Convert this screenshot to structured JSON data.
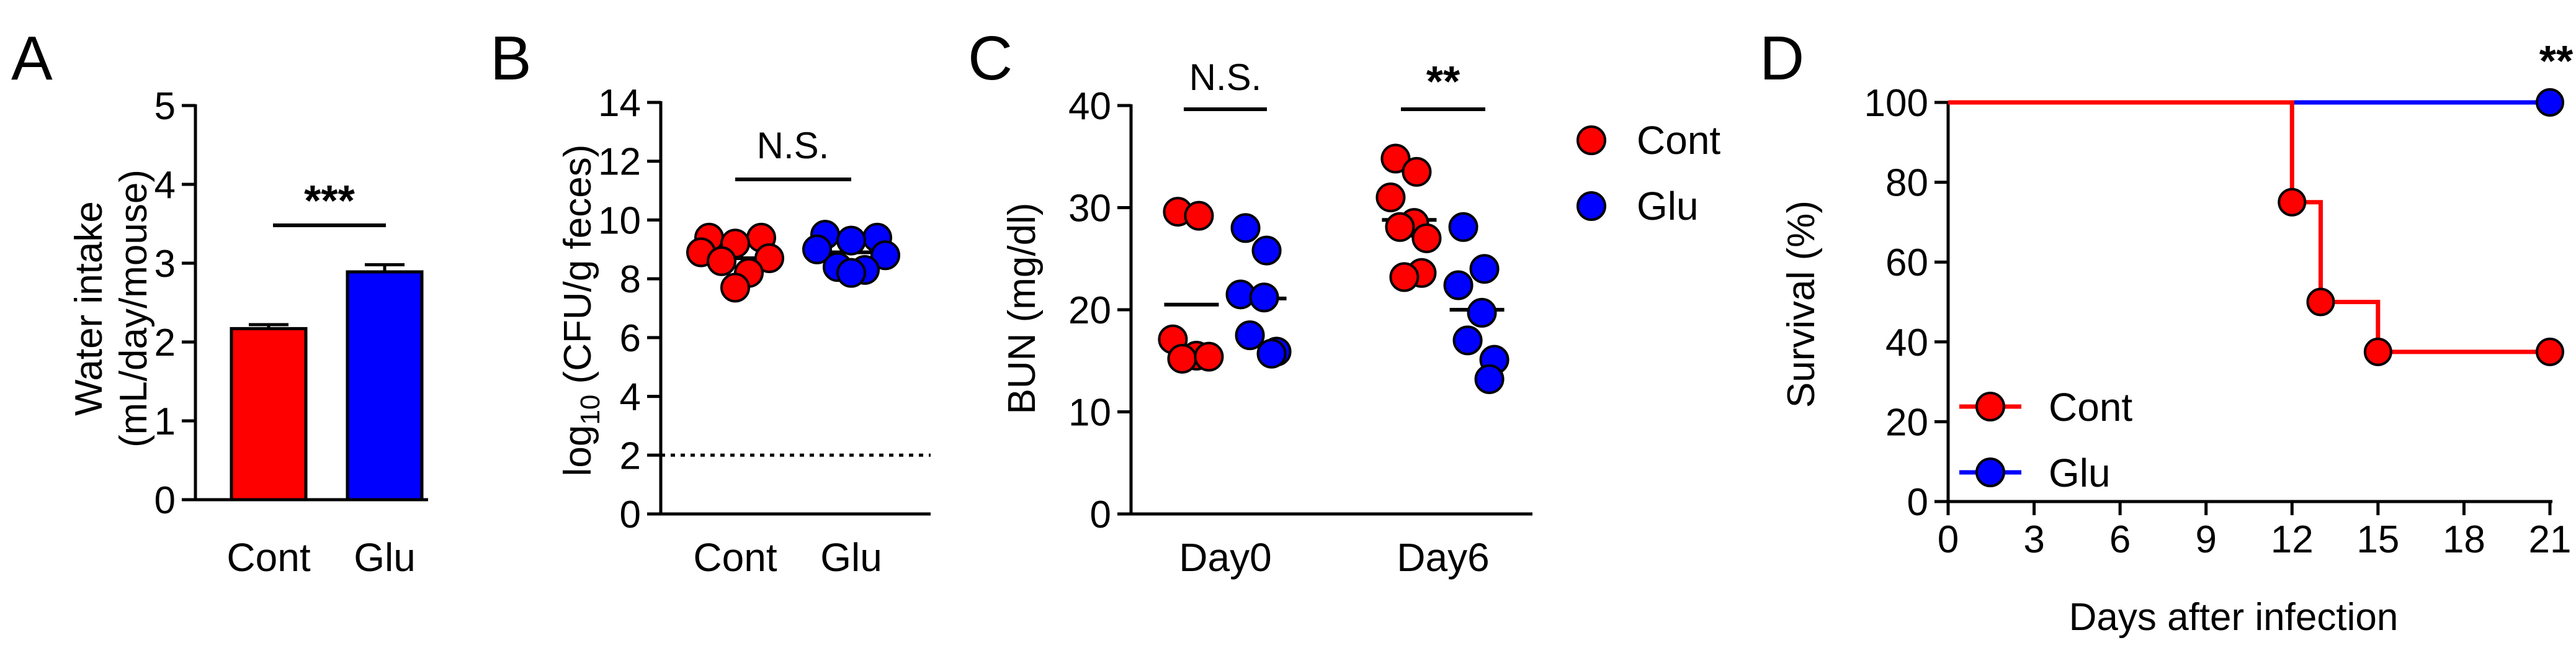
{
  "colors": {
    "cont": "#ff0000",
    "glu": "#0000ff",
    "axis": "#000000"
  },
  "chart_data": [
    {
      "panel": "A",
      "type": "bar",
      "ylabel_line1": "Water intake",
      "ylabel_line2": "(mL/day/mouse)",
      "ylim": [
        0,
        5
      ],
      "yticks": [
        0,
        1,
        2,
        3,
        4,
        5
      ],
      "categories": [
        "Cont",
        "Glu"
      ],
      "values": [
        2.17,
        2.89
      ],
      "errors": [
        0.05,
        0.09
      ],
      "bar_colors": [
        "#ff0000",
        "#0000ff"
      ],
      "significance": [
        {
          "label": "***",
          "between": [
            0,
            1
          ]
        }
      ]
    },
    {
      "panel": "B",
      "type": "scatter",
      "ylabel_base": "log",
      "ylabel_sub": "10",
      "ylabel_rest": " (CFU/g feces)",
      "ylim": [
        0,
        14
      ],
      "yticks": [
        0,
        2,
        4,
        6,
        8,
        10,
        12,
        14
      ],
      "detection_limit": 2,
      "categories": [
        "Cont",
        "Glu"
      ],
      "series": [
        {
          "name": "Cont",
          "color": "#ff0000",
          "values": [
            9.4,
            9.4,
            9.2,
            8.9,
            8.7,
            8.6,
            8.2,
            7.7
          ],
          "mean": 8.7
        },
        {
          "name": "Glu",
          "color": "#0000ff",
          "values": [
            9.5,
            9.4,
            9.3,
            9.0,
            8.8,
            8.4,
            8.3,
            8.2
          ],
          "mean": 8.9
        }
      ],
      "significance": [
        {
          "label": "N.S.",
          "between": [
            0,
            1
          ]
        }
      ]
    },
    {
      "panel": "C",
      "type": "scatter",
      "ylabel": "BUN (mg/dl)",
      "ylim": [
        0,
        40
      ],
      "yticks": [
        0,
        10,
        20,
        30,
        40
      ],
      "categories": [
        "Day0",
        "Day6"
      ],
      "legend": [
        "Cont",
        "Glu"
      ],
      "series": [
        {
          "name": "Cont",
          "color": "#ff0000",
          "groups": [
            [
              29.6,
              29.2,
              17.1,
              15.5,
              15.2,
              15.4
            ],
            [
              34.8,
              33.5,
              31.0,
              28.5,
              28.1,
              27.0,
              23.6,
              23.2
            ]
          ],
          "means": [
            20.5,
            28.8
          ]
        },
        {
          "name": "Glu",
          "color": "#0000ff",
          "groups": [
            [
              28.0,
              25.8,
              21.5,
              21.2,
              17.5,
              15.9,
              15.7
            ],
            [
              28.1,
              24.0,
              22.4,
              19.7,
              17.0,
              15.1,
              13.2
            ]
          ],
          "means": [
            21.1,
            20.0
          ]
        }
      ],
      "significance": [
        {
          "label": "N.S.",
          "group": 0
        },
        {
          "label": "**",
          "group": 1
        }
      ]
    },
    {
      "panel": "D",
      "type": "line",
      "subtype": "kaplan-meier",
      "ylabel": "Survival (%)",
      "xlabel": "Days after infection",
      "xlim": [
        0,
        21
      ],
      "xticks": [
        0,
        3,
        6,
        9,
        12,
        15,
        18,
        21
      ],
      "ylim": [
        0,
        100
      ],
      "yticks": [
        0,
        20,
        40,
        60,
        80,
        100
      ],
      "legend": [
        "Cont",
        "Glu"
      ],
      "legend_position": "bottom-left",
      "series": [
        {
          "name": "Cont",
          "color": "#ff0000",
          "steps": [
            [
              0,
              100
            ],
            [
              12,
              100
            ],
            [
              12,
              75
            ],
            [
              13,
              75
            ],
            [
              13,
              50
            ],
            [
              15,
              50
            ],
            [
              15,
              37.5
            ],
            [
              21,
              37.5
            ]
          ],
          "markers": [
            [
              12,
              75
            ],
            [
              13,
              50
            ],
            [
              15,
              37.5
            ],
            [
              21,
              37.5
            ]
          ]
        },
        {
          "name": "Glu",
          "color": "#0000ff",
          "steps": [
            [
              0,
              100
            ],
            [
              21,
              100
            ]
          ],
          "markers": [
            [
              21,
              100
            ]
          ]
        }
      ],
      "significance": [
        {
          "label": "**",
          "at_x": 21
        }
      ]
    }
  ]
}
